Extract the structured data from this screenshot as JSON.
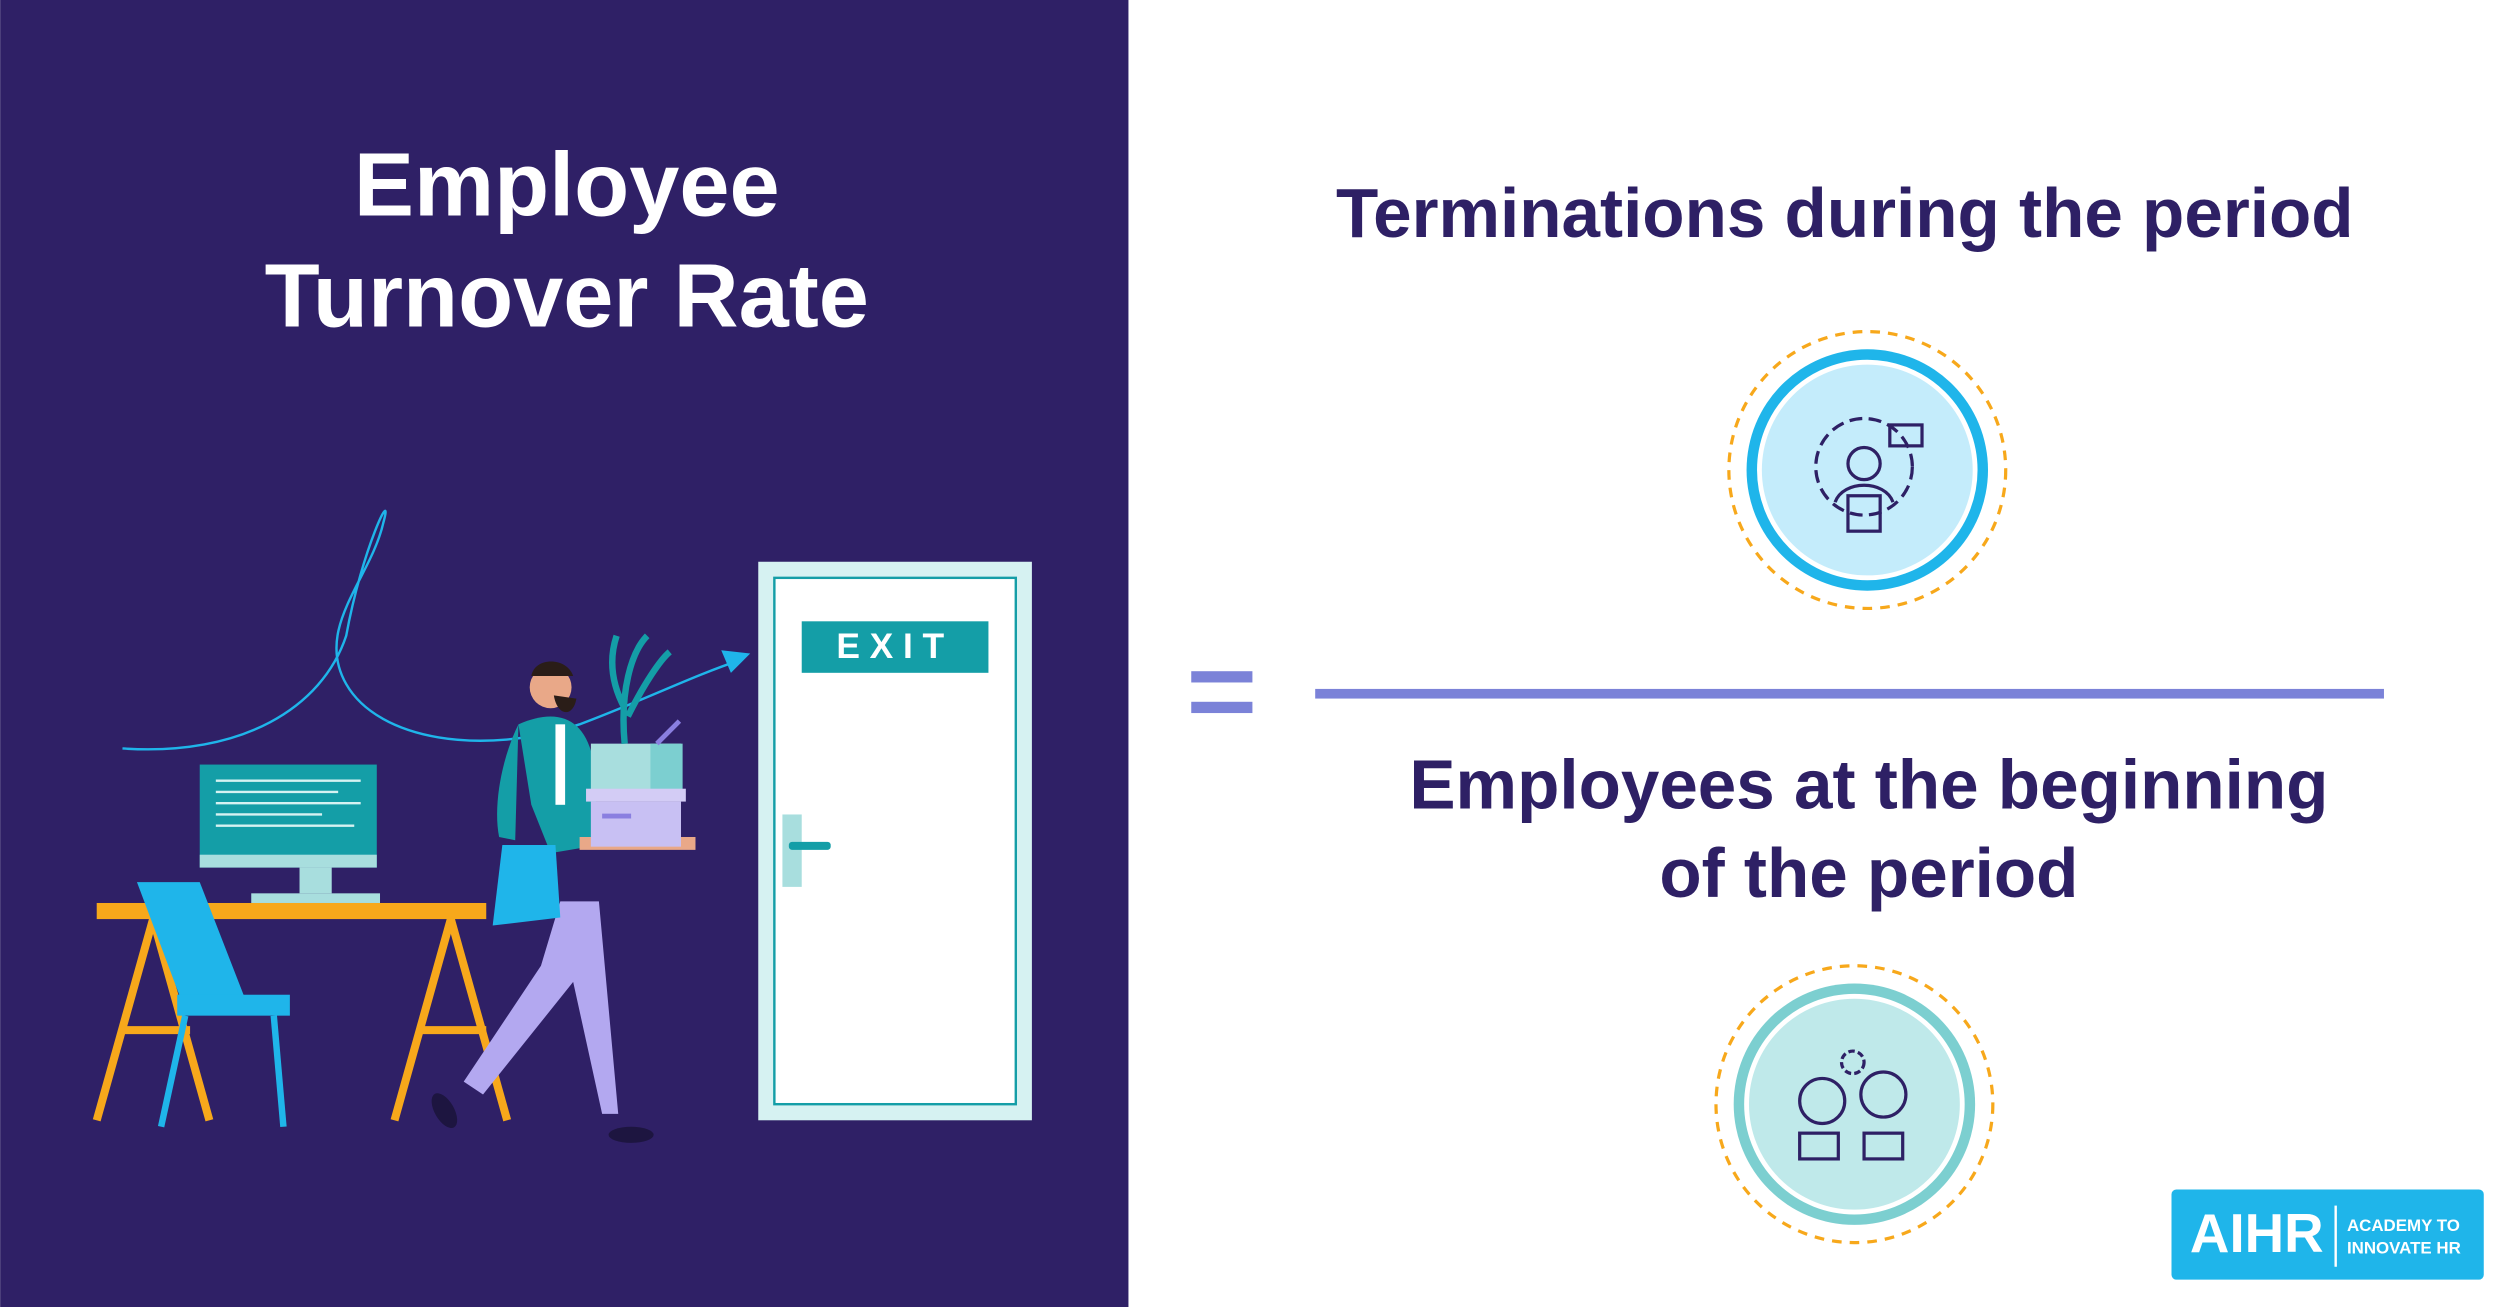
{
  "title": {
    "lines": [
      "Employee",
      "Turnover Rate"
    ]
  },
  "formula": {
    "numerator": "Terminations during the period",
    "denominator": [
      "Employees at the beginning",
      "of the period"
    ]
  },
  "illustration": {
    "sign": "EXIT"
  },
  "logo": {
    "name": "AIHR",
    "tagline": [
      "ACADEMY TO",
      "INNOVATE HR"
    ]
  }
}
